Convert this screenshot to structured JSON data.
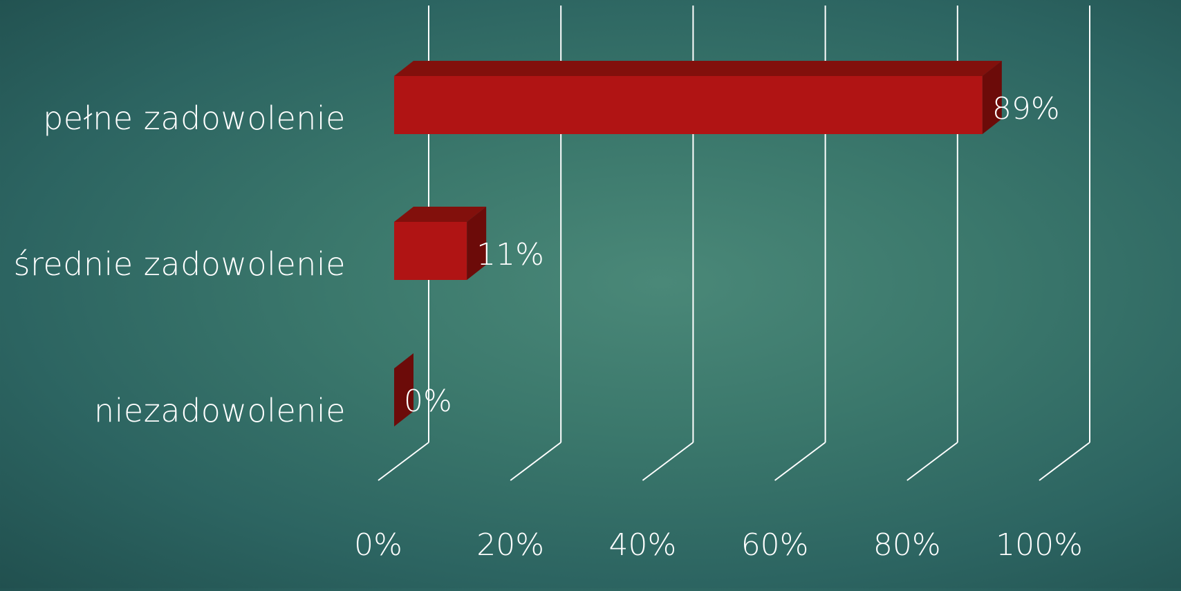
{
  "chart_data": {
    "type": "bar",
    "orientation": "horizontal",
    "style": "3d",
    "categories": [
      "pełne zadowolenie",
      "średnie zadowolenie",
      "niezadowolenie"
    ],
    "values": [
      89,
      11,
      0
    ],
    "data_labels": [
      "89%",
      "11%",
      "0%"
    ],
    "x_ticks": [
      "0%",
      "20%",
      "40%",
      "60%",
      "80%",
      "100%"
    ],
    "xlim": [
      0,
      100
    ],
    "grid": true,
    "legend": "none",
    "colors": {
      "bar_front": "#b01414",
      "bar_top": "#82100c",
      "bar_side": "#6c0b09",
      "grid": "#ffffff",
      "text": "#ffffff"
    }
  }
}
